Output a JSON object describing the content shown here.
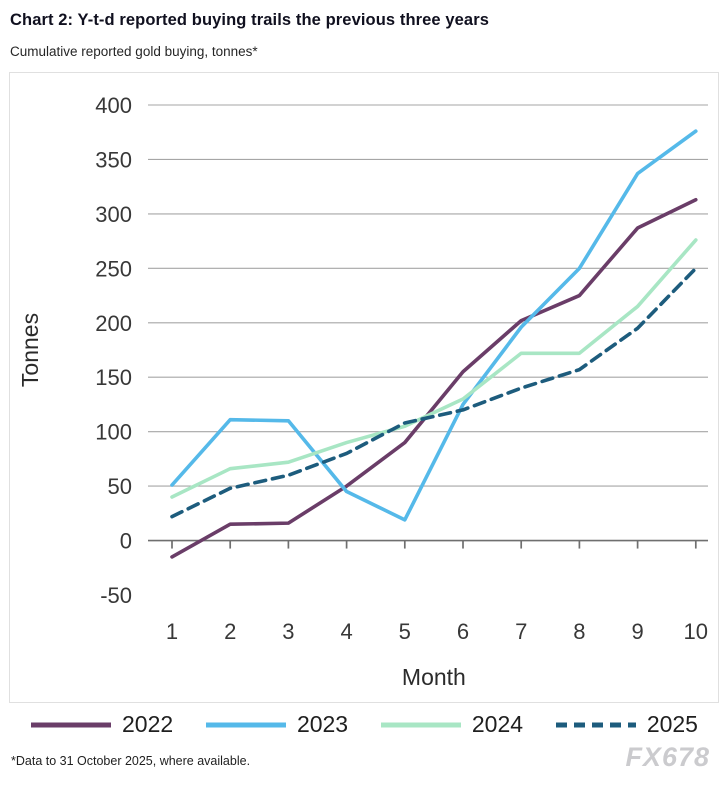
{
  "page": {
    "title": "Chart 2: Y-t-d reported buying trails the previous three years",
    "subtitle": "Cumulative reported gold buying, tonnes*",
    "footnote": "*Data to 31 October 2025, where available.",
    "watermark": "FX678"
  },
  "chart_data": {
    "type": "line",
    "title": "Chart 2: Y-t-d reported buying trails the previous three years",
    "subtitle": "Cumulative reported gold buying, tonnes*",
    "xlabel": "Month",
    "ylabel": "Tonnes",
    "x": [
      1,
      2,
      3,
      4,
      5,
      6,
      7,
      8,
      9,
      10
    ],
    "ylim": [
      -50,
      400
    ],
    "ytick_step": 50,
    "grid": "horizontal",
    "legend_position": "bottom",
    "colors": {
      "gridline": "#a6a6a6",
      "zero_axis": "#6f6f6f",
      "tick_text": "#383838"
    },
    "series": [
      {
        "name": "2022",
        "color": "#6a3d68",
        "style": "solid",
        "values": [
          -15,
          15,
          16,
          50,
          90,
          155,
          202,
          225,
          287,
          313
        ]
      },
      {
        "name": "2023",
        "color": "#55b9e9",
        "style": "solid",
        "values": [
          51,
          111,
          110,
          45,
          19,
          125,
          196,
          250,
          337,
          376
        ]
      },
      {
        "name": "2024",
        "color": "#a8e6c4",
        "style": "solid",
        "values": [
          40,
          66,
          72,
          90,
          105,
          130,
          172,
          172,
          215,
          276
        ]
      },
      {
        "name": "2025",
        "color": "#1d5c7d",
        "style": "dashed",
        "values": [
          22,
          48,
          60,
          80,
          108,
          120,
          140,
          157,
          195,
          250
        ]
      }
    ]
  }
}
